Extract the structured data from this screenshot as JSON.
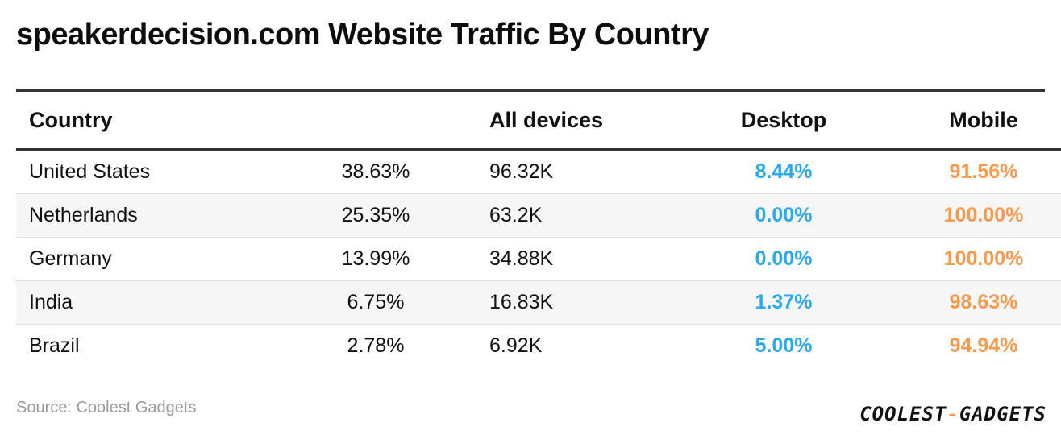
{
  "title": "speakerdecision.com Website Traffic By Country",
  "columns": [
    "Country",
    "",
    "All devices",
    "Desktop",
    "Mobile"
  ],
  "chart_data": {
    "type": "table",
    "title": "speakerdecision.com Website Traffic By Country",
    "columns": [
      "Country",
      "",
      "All devices",
      "Desktop",
      "Mobile"
    ],
    "rows": [
      {
        "country": "United States",
        "share": "38.63%",
        "all_devices": "96.32K",
        "desktop": "8.44%",
        "mobile": "91.56%"
      },
      {
        "country": "Netherlands",
        "share": "25.35%",
        "all_devices": "63.2K",
        "desktop": "0.00%",
        "mobile": "100.00%"
      },
      {
        "country": "Germany",
        "share": "13.99%",
        "all_devices": "34.88K",
        "desktop": "0.00%",
        "mobile": "100.00%"
      },
      {
        "country": "India",
        "share": "6.75%",
        "all_devices": "16.83K",
        "desktop": "1.37%",
        "mobile": "98.63%"
      },
      {
        "country": "Brazil",
        "share": "2.78%",
        "all_devices": "6.92K",
        "desktop": "5.00%",
        "mobile": "94.94%"
      }
    ]
  },
  "source": "Source: Coolest Gadgets",
  "logo": {
    "part1": "COOLEST",
    "dash": "-",
    "part2": "GADGETS"
  },
  "colors": {
    "desktop": "#2aa9ee",
    "mobile": "#f59a4e",
    "rule": "#333333",
    "alt_row": "#f6f6f6"
  }
}
